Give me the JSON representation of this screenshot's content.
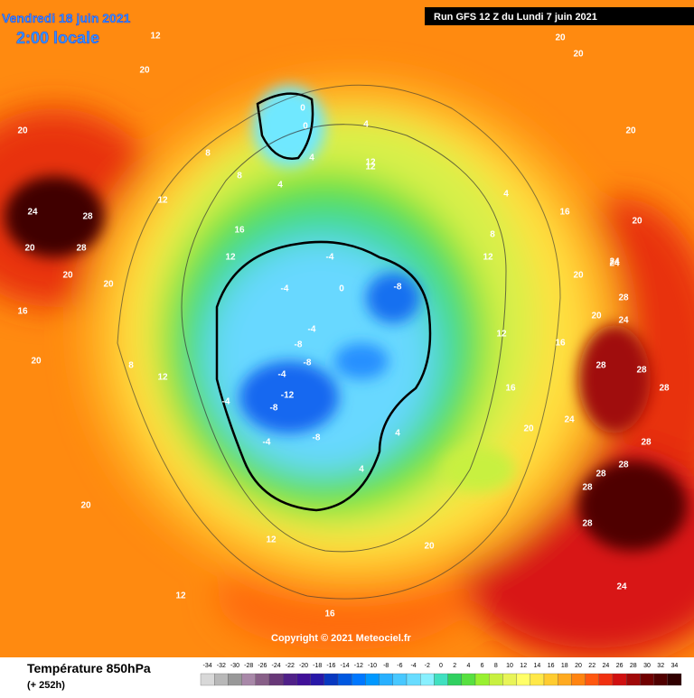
{
  "header": {
    "date": "Vendredi 18 juin 2021",
    "time": "2:00 locale",
    "run": "Run GFS 12 Z du Lundi 7 juin 2021"
  },
  "copyright": "Copyright © 2021 Meteociel.fr",
  "footer": {
    "title": "Température 850hPa",
    "lead": "(+ 252h)"
  },
  "scale": {
    "values": [
      -34,
      -32,
      -30,
      -28,
      -26,
      -24,
      -22,
      -20,
      -18,
      -16,
      -14,
      -12,
      -10,
      -8,
      -6,
      -4,
      -2,
      0,
      2,
      4,
      6,
      8,
      10,
      12,
      14,
      16,
      18,
      20,
      22,
      24,
      26,
      28,
      30,
      32,
      34
    ],
    "colors": [
      "#d8d8d8",
      "#b8b8b8",
      "#989898",
      "#a888a8",
      "#886088",
      "#683878",
      "#502088",
      "#401098",
      "#2818a8",
      "#0838c0",
      "#0058e0",
      "#0078ff",
      "#0098ff",
      "#28b0ff",
      "#48c8ff",
      "#68dcff",
      "#88f0ff",
      "#40e0c0",
      "#30d060",
      "#58e040",
      "#98f030",
      "#c8f040",
      "#e8f458",
      "#ffff68",
      "#ffe848",
      "#ffcc30",
      "#ffaa20",
      "#ff8410",
      "#ff5810",
      "#f03010",
      "#d01010",
      "#a00808",
      "#700000",
      "#500000",
      "#300000"
    ]
  },
  "contours": [
    20,
    20,
    12,
    20,
    20,
    20,
    20,
    12,
    8,
    8,
    0,
    0,
    4,
    4,
    12,
    4,
    24,
    28,
    20,
    28,
    12,
    16,
    20,
    16,
    20,
    8,
    12,
    -4,
    -4,
    0,
    -4,
    -8,
    -8,
    -4,
    -8,
    -12,
    -8,
    -4,
    -4,
    -8,
    4,
    4,
    12,
    16,
    20,
    24,
    28,
    24,
    28,
    20,
    28,
    24,
    28,
    28,
    28,
    16,
    12,
    20,
    16,
    20,
    12,
    12,
    28,
    28,
    24,
    20,
    4,
    8,
    12,
    16,
    20,
    24,
    28
  ]
}
